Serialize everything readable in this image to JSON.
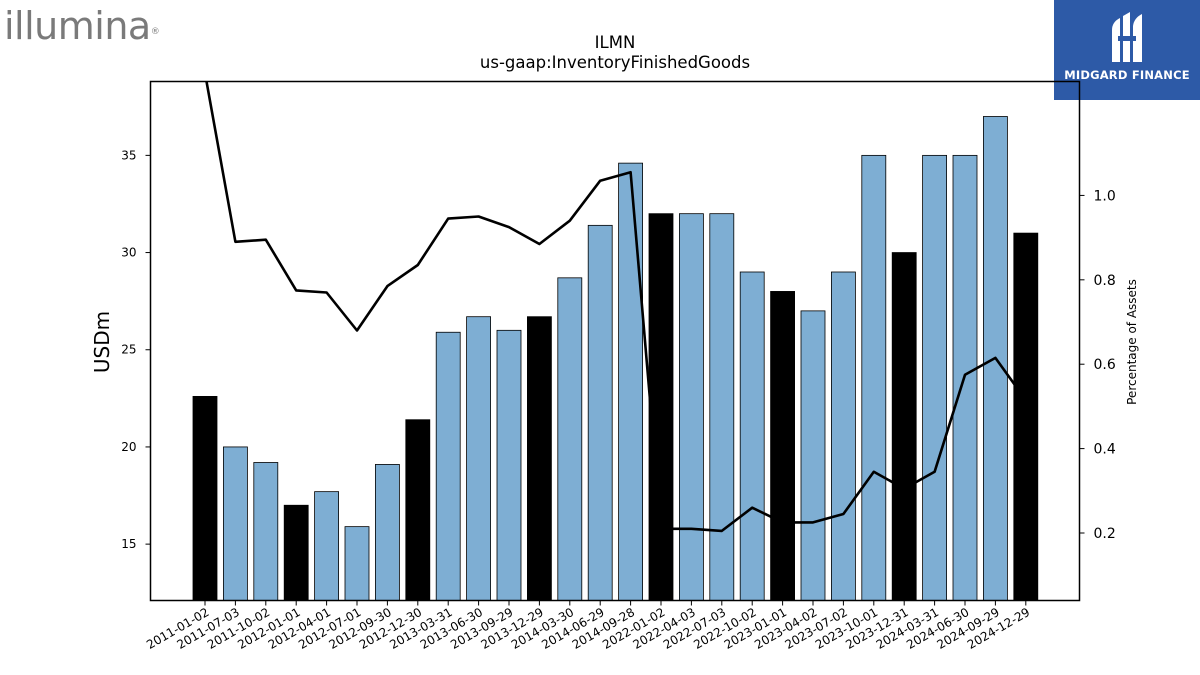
{
  "logo_left": {
    "text": "illumina",
    "registered_mark": "®"
  },
  "logo_right": {
    "text": "MIDGARD FINANCE"
  },
  "chart_data": {
    "type": "bar",
    "title": "ILMN",
    "subtitle": "us-gaap:InventoryFinishedGoods",
    "ylabel": "USDm",
    "y2label": "Percentage of Assets",
    "ylim": [
      12.1,
      38.8
    ],
    "y2lim": [
      0.04,
      1.27
    ],
    "yticks": [
      15,
      20,
      25,
      30,
      35
    ],
    "y2ticks": [
      "0.2",
      "0.4",
      "0.6",
      "0.8",
      "1.0"
    ],
    "categories": [
      "2011-01-02",
      "2011-07-03",
      "2011-10-02",
      "2012-01-01",
      "2012-04-01",
      "2012-07-01",
      "2012-09-30",
      "2012-12-30",
      "2013-03-31",
      "2013-06-30",
      "2013-09-29",
      "2013-12-29",
      "2014-03-30",
      "2014-06-29",
      "2014-09-28",
      "2022-01-02",
      "2022-04-03",
      "2022-07-03",
      "2022-10-02",
      "2023-01-01",
      "2023-04-02",
      "2023-07-02",
      "2023-10-01",
      "2023-12-31",
      "2024-03-31",
      "2024-06-30",
      "2024-09-29",
      "2024-12-29"
    ],
    "series": [
      {
        "type": "bar",
        "values": [
          22.6,
          20.0,
          19.2,
          17.0,
          17.7,
          15.9,
          19.1,
          21.4,
          25.9,
          26.7,
          26.0,
          26.7,
          28.7,
          31.4,
          34.6,
          32.0,
          32.0,
          32.0,
          29.0,
          28.0,
          27.0,
          29.0,
          35.0,
          30.0,
          35.0,
          35.0,
          37.0,
          31.0
        ]
      },
      {
        "type": "line",
        "axis": "right",
        "values": [
          1.29,
          0.89,
          0.895,
          0.775,
          0.77,
          0.68,
          0.785,
          0.835,
          0.945,
          0.95,
          0.925,
          0.885,
          0.94,
          1.035,
          1.055,
          0.21,
          0.21,
          0.205,
          0.26,
          0.225,
          0.225,
          0.245,
          0.345,
          0.305,
          0.345,
          0.575,
          0.615,
          0.515
        ]
      }
    ],
    "bar_colors": {
      "annual": "#000000",
      "quarterly": "#7eaed3"
    },
    "annual_flags": [
      true,
      false,
      false,
      true,
      false,
      false,
      false,
      true,
      false,
      false,
      false,
      true,
      false,
      false,
      false,
      true,
      false,
      false,
      false,
      true,
      false,
      false,
      false,
      true,
      false,
      false,
      false,
      true
    ],
    "line_color": "#000000",
    "grid": false
  }
}
